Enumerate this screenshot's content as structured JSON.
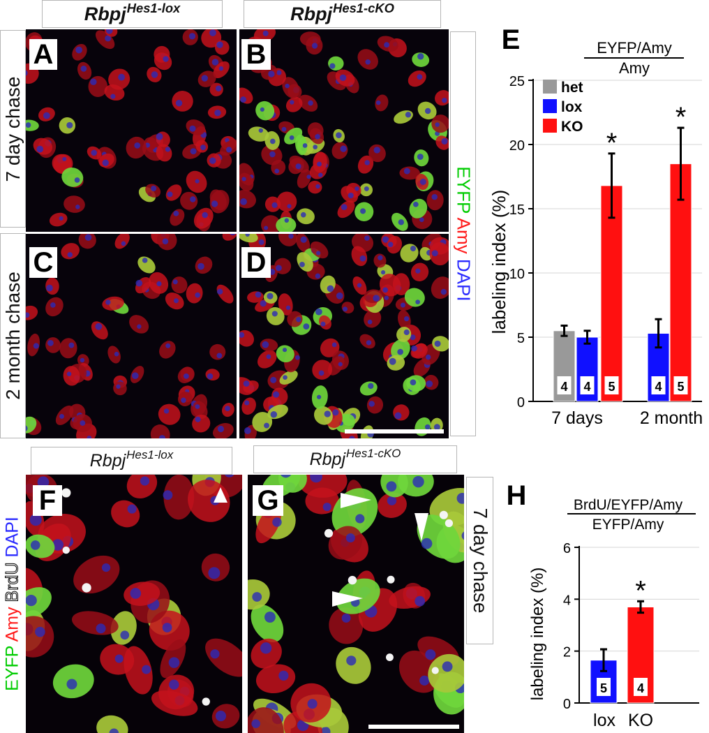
{
  "top_headers": [
    {
      "base": "Rbpj",
      "sup": "Hes1-lox"
    },
    {
      "base": "Rbpj",
      "sup": "Hes1-cKO"
    }
  ],
  "bottom_headers": [
    {
      "base": "Rbpj",
      "sup": "Hes1-lox"
    },
    {
      "base": "Rbpj",
      "sup": "Hes1-cKO"
    }
  ],
  "row_labels": {
    "top": "7 day chase",
    "bottom": "2 month chase",
    "lower_right": "7 day chase"
  },
  "stain_top": [
    {
      "text": "EYFP",
      "color": "#00cc00"
    },
    {
      "text": " Amy",
      "color": "#ff1a1a"
    },
    {
      "text": " DAPI",
      "color": "#2a2aff"
    }
  ],
  "stain_bottom": [
    {
      "text": "EYFP",
      "color": "#00cc00"
    },
    {
      "text": " Amy",
      "color": "#ff1a1a"
    },
    {
      "text": " BrdU",
      "color": "#ffffff"
    },
    {
      "text": " DAPI",
      "color": "#2a2aff"
    }
  ],
  "panel_letters": {
    "A": "A",
    "B": "B",
    "C": "C",
    "D": "D",
    "F": "F",
    "G": "G",
    "E": "E",
    "H": "H"
  },
  "colors": {
    "het": "#999999",
    "lox": "#1010ff",
    "KO": "#ff1010"
  },
  "chart_data": [
    {
      "type": "bar",
      "panel": "E",
      "title": "EYFP/Amy",
      "title_denominator": "Amy",
      "xlabel": "",
      "ylabel": "labeling index (%)",
      "ylim": [
        0,
        25
      ],
      "yticks": [
        "0",
        "5",
        "10",
        "15",
        "20",
        "25"
      ],
      "categories": [
        "7 days",
        "2 month"
      ],
      "legend": [
        "het",
        "lox",
        "KO"
      ],
      "legend_position": "top-left",
      "grid": true,
      "bars": [
        {
          "category": "7 days",
          "series": "het",
          "value": 5.5,
          "err": 0.4,
          "n": "4",
          "sig": ""
        },
        {
          "category": "7 days",
          "series": "lox",
          "value": 5.0,
          "err": 0.5,
          "n": "4",
          "sig": ""
        },
        {
          "category": "7 days",
          "series": "KO",
          "value": 16.8,
          "err": 2.5,
          "n": "5",
          "sig": "*"
        },
        {
          "category": "2 month",
          "series": "lox",
          "value": 5.3,
          "err": 1.1,
          "n": "4",
          "sig": ""
        },
        {
          "category": "2 month",
          "series": "KO",
          "value": 18.5,
          "err": 2.8,
          "n": "5",
          "sig": "*"
        }
      ]
    },
    {
      "type": "bar",
      "panel": "H",
      "title": "BrdU/EYFP/Amy",
      "title_denominator": "EYFP/Amy",
      "xlabel": "",
      "ylabel": "labeling index (%)",
      "ylim": [
        0,
        6
      ],
      "yticks": [
        "0",
        "2",
        "4",
        "6"
      ],
      "categories": [
        "lox",
        "KO"
      ],
      "grid": true,
      "bars": [
        {
          "category": "lox",
          "series": "lox",
          "value": 1.65,
          "err": 0.42,
          "n": "5",
          "sig": ""
        },
        {
          "category": "KO",
          "series": "KO",
          "value": 3.7,
          "err": 0.22,
          "n": "4",
          "sig": "*"
        }
      ]
    }
  ]
}
